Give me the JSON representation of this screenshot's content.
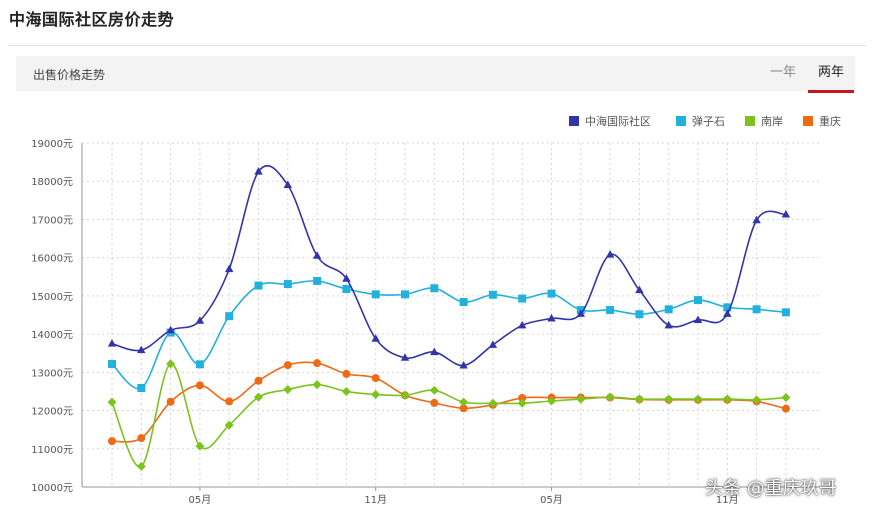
{
  "page": {
    "title": "中海国际社区房价走势"
  },
  "tabs": {
    "label": "出售价格走势",
    "options": [
      {
        "label": "一年"
      },
      {
        "label": "两年"
      }
    ],
    "selected": "两年",
    "accent": "#c8161e"
  },
  "watermark": {
    "text": "头条 @重庆玖哥"
  },
  "chart_data": {
    "type": "line",
    "title": "",
    "xlabel": "",
    "ylabel": "",
    "ylim": [
      10000,
      19000
    ],
    "yticks": [
      10000,
      11000,
      12000,
      13000,
      14000,
      15000,
      16000,
      17000,
      18000,
      19000
    ],
    "ytick_labels": [
      "10000元",
      "11000元",
      "12000元",
      "13000元",
      "14000元",
      "15000元",
      "16000元",
      "17000元",
      "18000元",
      "19000元"
    ],
    "x_index": [
      0,
      1,
      2,
      3,
      4,
      5,
      6,
      7,
      8,
      9,
      10,
      11,
      12,
      13,
      14,
      15,
      16,
      17,
      18,
      19,
      20,
      21,
      22,
      23
    ],
    "xtick_labels": [
      {
        "index": 3,
        "label": "05月"
      },
      {
        "index": 9,
        "label": "11月"
      },
      {
        "index": 15,
        "label": "05月"
      },
      {
        "index": 21,
        "label": "11月"
      }
    ],
    "legend_position": "top-right",
    "series": [
      {
        "name": "中海国际社区",
        "color": "#3333aa",
        "marker": "triangle",
        "values": [
          13750,
          13580,
          14100,
          14350,
          15700,
          18250,
          17900,
          16050,
          15450,
          13880,
          13380,
          13530,
          13180,
          13720,
          14230,
          14410,
          14530,
          16080,
          15150,
          14230,
          14370,
          14530,
          16980,
          17130
        ]
      },
      {
        "name": "弹子石",
        "color": "#22b1dd",
        "marker": "square",
        "values": [
          13220,
          12590,
          14040,
          13210,
          14470,
          15270,
          15310,
          15390,
          15180,
          15040,
          15040,
          15200,
          14840,
          15030,
          14930,
          15060,
          14630,
          14630,
          14520,
          14650,
          14890,
          14700,
          14650,
          14570
        ]
      },
      {
        "name": "南岸",
        "color": "#7cc31e",
        "marker": "diamond",
        "values": [
          12220,
          10540,
          13220,
          11070,
          11620,
          12350,
          12550,
          12680,
          12500,
          12420,
          12400,
          12530,
          12220,
          12190,
          12190,
          12250,
          12300,
          12350,
          12300,
          12300,
          12300,
          12300,
          12280,
          12340
        ]
      },
      {
        "name": "重庆",
        "color": "#ee6a14",
        "marker": "circle",
        "values": [
          11200,
          11280,
          12230,
          12660,
          12240,
          12780,
          13190,
          13240,
          12960,
          12850,
          12400,
          12200,
          12060,
          12150,
          12330,
          12340,
          12340,
          12340,
          12290,
          12280,
          12280,
          12280,
          12240,
          12050
        ]
      }
    ]
  }
}
